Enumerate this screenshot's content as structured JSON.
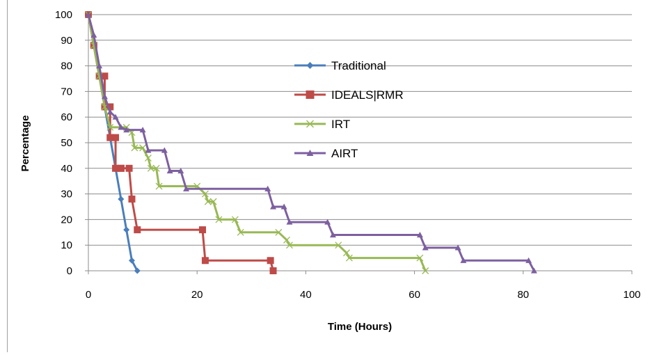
{
  "chart_data": {
    "type": "line",
    "title": "",
    "xlabel": "Time (Hours)",
    "ylabel": "Percentage",
    "xlim": [
      0,
      100
    ],
    "ylim": [
      0,
      100
    ],
    "xticks": [
      0,
      20,
      40,
      60,
      80,
      100
    ],
    "yticks": [
      0,
      10,
      20,
      30,
      40,
      50,
      60,
      70,
      80,
      90,
      100
    ],
    "grid": "horizontal",
    "legend_position": "right of plot, upper middle",
    "series": [
      {
        "name": "Traditional",
        "color": "#4a7ebb",
        "marker": "diamond",
        "x": [
          0,
          1,
          2,
          3,
          4,
          5,
          6,
          7,
          8,
          9
        ],
        "y": [
          100,
          88,
          76,
          64,
          52,
          40,
          28,
          16,
          4,
          0
        ]
      },
      {
        "name": "IDEALS|RMR",
        "color": "#be4b48",
        "marker": "square",
        "x": [
          0,
          1,
          1,
          2,
          3,
          3,
          4,
          4,
          5,
          5,
          6,
          6,
          7.5,
          8,
          9,
          21,
          21.5,
          33.5,
          34
        ],
        "y": [
          100,
          88,
          88,
          76,
          76,
          64,
          64,
          52,
          52,
          40,
          40,
          40,
          40,
          28,
          16,
          16,
          4,
          4,
          0
        ]
      },
      {
        "name": "IRT",
        "color": "#98b954",
        "marker": "x",
        "x": [
          0,
          1,
          2,
          3,
          4,
          7,
          8,
          8.5,
          10,
          11,
          11.5,
          12.5,
          13,
          20,
          21.5,
          22,
          23,
          24,
          27,
          28,
          35,
          36.5,
          37,
          46,
          47.5,
          48,
          61,
          62
        ],
        "y": [
          100,
          88,
          76,
          64,
          56,
          56,
          54,
          48,
          48,
          44,
          40,
          40,
          33,
          33,
          30,
          27,
          27,
          20,
          20,
          15,
          15,
          12,
          10,
          10,
          7,
          5,
          5,
          0
        ]
      },
      {
        "name": "AIRT",
        "color": "#7d60a0",
        "marker": "triangle",
        "x": [
          0,
          1,
          2,
          3,
          4,
          5,
          6,
          7,
          10,
          11,
          14,
          15,
          17,
          18,
          33,
          34,
          36,
          37,
          44,
          45,
          61,
          62,
          68,
          69,
          81,
          82
        ],
        "y": [
          100,
          92,
          80,
          68,
          62,
          60,
          56,
          55,
          55,
          47,
          47,
          39,
          39,
          32,
          32,
          25,
          25,
          19,
          19,
          14,
          14,
          9,
          9,
          4,
          4,
          0
        ]
      }
    ]
  }
}
